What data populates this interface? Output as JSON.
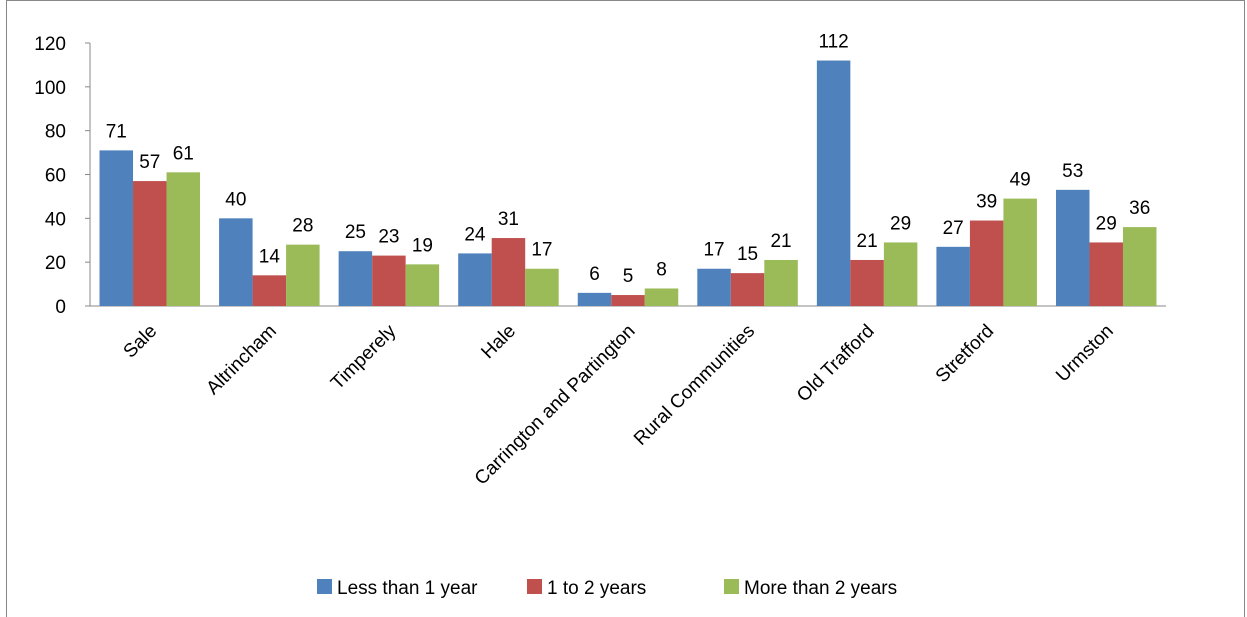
{
  "chart_data": {
    "type": "bar",
    "categories": [
      "Sale",
      "Altrincham",
      "Timperely",
      "Hale",
      "Carrington and Partington",
      "Rural Communities",
      "Old Trafford",
      "Stretford",
      "Urmston"
    ],
    "series": [
      {
        "name": "Less than 1 year",
        "color": "#4F81BD",
        "values": [
          71,
          40,
          25,
          24,
          6,
          17,
          112,
          27,
          53
        ]
      },
      {
        "name": "1 to 2 years",
        "color": "#C0504D",
        "values": [
          57,
          14,
          23,
          31,
          5,
          15,
          21,
          39,
          29
        ]
      },
      {
        "name": "More than 2 years",
        "color": "#9BBB59",
        "values": [
          61,
          28,
          19,
          17,
          8,
          21,
          29,
          49,
          36
        ]
      }
    ],
    "ylim": [
      0,
      120
    ],
    "yticks": [
      0,
      20,
      40,
      60,
      80,
      100,
      120
    ],
    "data_labels": true,
    "grid": false,
    "legend": "bottom"
  }
}
